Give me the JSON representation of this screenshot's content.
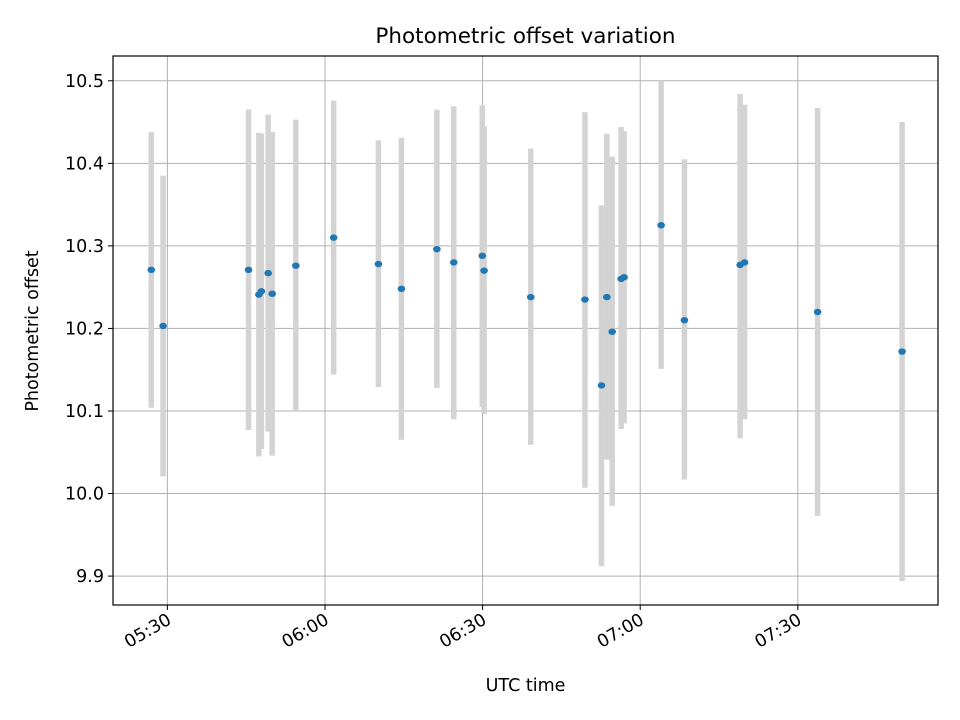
{
  "chart_data": {
    "type": "scatter",
    "title": "Photometric offset variation",
    "xlabel": "UTC time",
    "ylabel": "Photometric offset",
    "xlim": [
      "05:19:39",
      "07:56:41"
    ],
    "ylim": [
      9.865,
      10.53
    ],
    "x_ticks": [
      "05:30",
      "06:00",
      "06:30",
      "07:00",
      "07:30"
    ],
    "y_ticks": [
      9.9,
      10.0,
      10.1,
      10.2,
      10.3,
      10.4,
      10.5
    ],
    "y_tick_labels": [
      "9.9",
      "10.0",
      "10.1",
      "10.2",
      "10.3",
      "10.4",
      "10.5"
    ],
    "grid": true,
    "error_bar_color": "#d3d3d3",
    "point_color": "#1f77b4",
    "points": [
      {
        "x": "05:26:56",
        "y": 10.271,
        "ylow": 10.104,
        "yhigh": 10.438
      },
      {
        "x": "05:29:11",
        "y": 10.203,
        "ylow": 10.021,
        "yhigh": 10.385
      },
      {
        "x": "05:45:27",
        "y": 10.271,
        "ylow": 10.077,
        "yhigh": 10.465
      },
      {
        "x": "05:47:25",
        "y": 10.241,
        "ylow": 10.045,
        "yhigh": 10.437
      },
      {
        "x": "05:47:54",
        "y": 10.245,
        "ylow": 10.054,
        "yhigh": 10.436
      },
      {
        "x": "05:49:11",
        "y": 10.267,
        "ylow": 10.075,
        "yhigh": 10.459
      },
      {
        "x": "05:49:57",
        "y": 10.242,
        "ylow": 10.046,
        "yhigh": 10.438
      },
      {
        "x": "05:54:27",
        "y": 10.276,
        "ylow": 10.099,
        "yhigh": 10.453
      },
      {
        "x": "06:01:39",
        "y": 10.31,
        "ylow": 10.144,
        "yhigh": 10.476
      },
      {
        "x": "06:10:10",
        "y": 10.278,
        "ylow": 10.129,
        "yhigh": 10.428
      },
      {
        "x": "06:14:33",
        "y": 10.248,
        "ylow": 10.065,
        "yhigh": 10.431
      },
      {
        "x": "06:21:18",
        "y": 10.296,
        "ylow": 10.128,
        "yhigh": 10.465
      },
      {
        "x": "06:24:31",
        "y": 10.28,
        "ylow": 10.09,
        "yhigh": 10.469
      },
      {
        "x": "06:29:56",
        "y": 10.288,
        "ylow": 10.105,
        "yhigh": 10.47
      },
      {
        "x": "06:30:17",
        "y": 10.27,
        "ylow": 10.096,
        "yhigh": 10.445
      },
      {
        "x": "06:39:10",
        "y": 10.238,
        "ylow": 10.059,
        "yhigh": 10.418
      },
      {
        "x": "06:49:29",
        "y": 10.235,
        "ylow": 10.007,
        "yhigh": 10.462
      },
      {
        "x": "06:52:38",
        "y": 10.131,
        "ylow": 9.912,
        "yhigh": 10.349
      },
      {
        "x": "06:53:39",
        "y": 10.238,
        "ylow": 10.041,
        "yhigh": 10.436
      },
      {
        "x": "06:54:40",
        "y": 10.196,
        "ylow": 9.985,
        "yhigh": 10.408
      },
      {
        "x": "06:56:22",
        "y": 10.26,
        "ylow": 10.078,
        "yhigh": 10.444
      },
      {
        "x": "06:56:56",
        "y": 10.262,
        "ylow": 10.085,
        "yhigh": 10.439
      },
      {
        "x": "07:03:59",
        "y": 10.325,
        "ylow": 10.151,
        "yhigh": 10.5
      },
      {
        "x": "07:08:25",
        "y": 10.21,
        "ylow": 10.017,
        "yhigh": 10.405
      },
      {
        "x": "07:19:01",
        "y": 10.277,
        "ylow": 10.067,
        "yhigh": 10.484
      },
      {
        "x": "07:19:52",
        "y": 10.28,
        "ylow": 10.09,
        "yhigh": 10.471
      },
      {
        "x": "07:33:46",
        "y": 10.22,
        "ylow": 9.973,
        "yhigh": 10.467
      },
      {
        "x": "07:49:51",
        "y": 10.172,
        "ylow": 9.894,
        "yhigh": 10.45
      }
    ]
  }
}
